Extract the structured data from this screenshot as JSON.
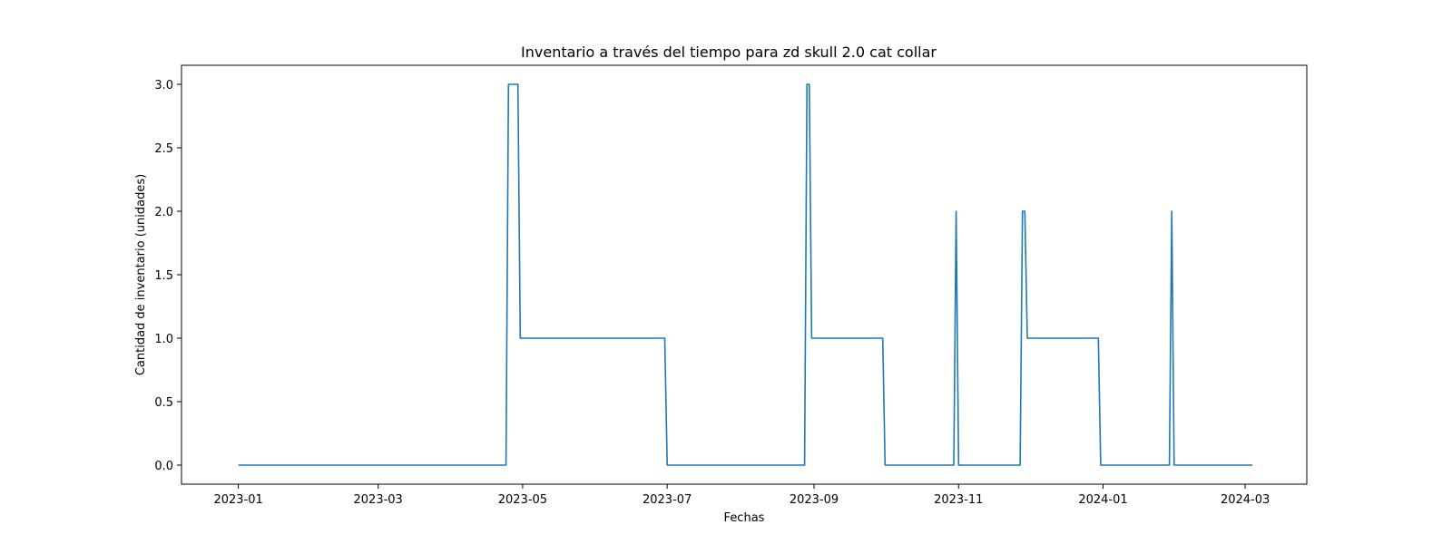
{
  "chart_data": {
    "type": "line",
    "title": "Inventario a través del tiempo para zd skull 2.0 cat collar",
    "xlabel": "Fechas",
    "ylabel": "Cantidad de inventario (unidades)",
    "xlim": [
      "2022-12-08",
      "2024-03-27"
    ],
    "ylim": [
      -0.15,
      3.15
    ],
    "grid": false,
    "x_ticks": [
      "2023-01",
      "2023-03",
      "2023-05",
      "2023-07",
      "2023-09",
      "2023-11",
      "2024-01",
      "2024-03"
    ],
    "y_ticks": [
      "0.0",
      "0.5",
      "1.0",
      "1.5",
      "2.0",
      "2.5",
      "3.0"
    ],
    "series": [
      {
        "color": "#1f77b4",
        "x": [
          "2023-01-01",
          "2023-04-24",
          "2023-04-25",
          "2023-04-29",
          "2023-04-30",
          "2023-06-30",
          "2023-07-01",
          "2023-08-28",
          "2023-08-29",
          "2023-08-30",
          "2023-08-31",
          "2023-09-30",
          "2023-10-01",
          "2023-10-30",
          "2023-10-31",
          "2023-11-01",
          "2023-11-27",
          "2023-11-28",
          "2023-11-29",
          "2023-11-30",
          "2023-12-30",
          "2023-12-31",
          "2024-01-29",
          "2024-01-30",
          "2024-01-31",
          "2024-03-04"
        ],
        "y": [
          0,
          0,
          3,
          3,
          1,
          1,
          0,
          0,
          3,
          3,
          1,
          1,
          0,
          0,
          2,
          0,
          0,
          2,
          2,
          1,
          1,
          0,
          0,
          2,
          0,
          0
        ]
      }
    ]
  }
}
